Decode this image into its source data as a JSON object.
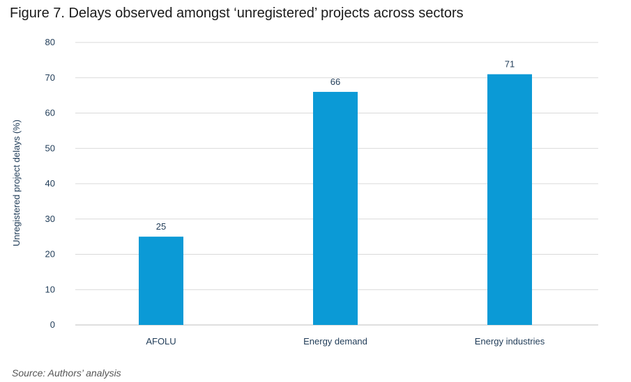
{
  "figure": {
    "title": "Figure 7. Delays observed amongst ‘unregistered’ projects across sectors",
    "source": "Source: Authors’ analysis"
  },
  "chart_data": {
    "type": "bar",
    "title": "Figure 7. Delays observed amongst ‘unregistered’ projects across sectors",
    "xlabel": "",
    "ylabel": "Unregistered project delays (%)",
    "categories": [
      "AFOLU",
      "Energy demand",
      "Energy industries"
    ],
    "values": [
      25,
      66,
      71
    ],
    "ylim": [
      0,
      80
    ],
    "yticks": [
      0,
      10,
      20,
      30,
      40,
      50,
      60,
      70,
      80
    ],
    "grid": true,
    "legend": "none",
    "bar_color": "#0b9ad6",
    "data_labels": true
  }
}
